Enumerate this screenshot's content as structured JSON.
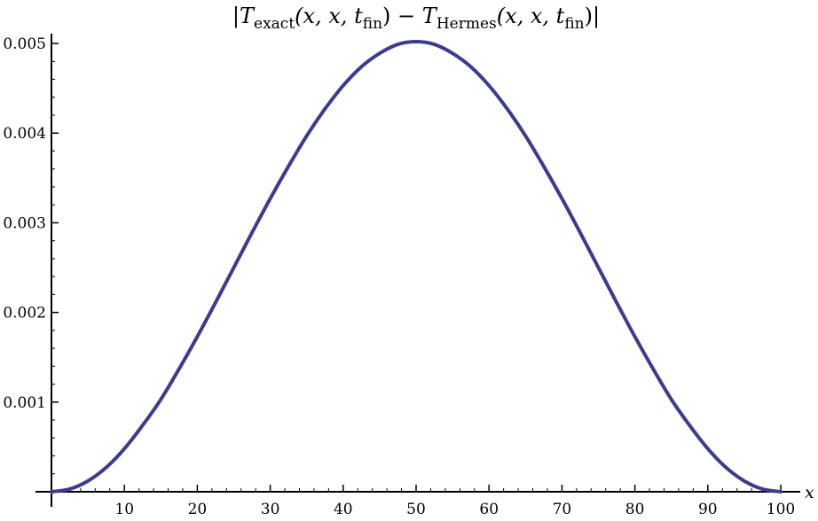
{
  "chart_data": {
    "type": "line",
    "title": {
      "bar_open": "|",
      "t1_main": "T",
      "t1_sub": "exact",
      "t1_args_a": "(x, x, t",
      "t1_args_sub": "fin",
      "t1_args_b": ")",
      "minus": " − ",
      "t2_main": "T",
      "t2_sub": "Hermes",
      "t2_args_a": "(x, x, t",
      "t2_args_sub": "fin",
      "t2_args_b": ")",
      "bar_close": "|"
    },
    "xlabel": "x",
    "ylabel": "",
    "xlim": [
      0,
      100
    ],
    "ylim": [
      0,
      0.00505
    ],
    "xticks": [
      10,
      20,
      30,
      40,
      50,
      60,
      70,
      80,
      90,
      100
    ],
    "xtick_labels": [
      "10",
      "20",
      "30",
      "40",
      "50",
      "60",
      "70",
      "80",
      "90",
      "100"
    ],
    "yticks": [
      0.001,
      0.002,
      0.003,
      0.004,
      0.005
    ],
    "ytick_labels": [
      "0.001",
      "0.002",
      "0.003",
      "0.004",
      "0.005"
    ],
    "grid": false,
    "series": [
      {
        "color": "#3b3b8f",
        "x": [
          0,
          2.5,
          5,
          7.5,
          10,
          12.5,
          15,
          17.5,
          20,
          22.5,
          25,
          27.5,
          30,
          32.5,
          35,
          37.5,
          40,
          42.5,
          45,
          47.5,
          50,
          52.5,
          55,
          57.5,
          60,
          62.5,
          65,
          67.5,
          70,
          72.5,
          75,
          77.5,
          80,
          82.5,
          85,
          87.5,
          90,
          92.5,
          95,
          97.5,
          100
        ],
        "y": [
          0,
          3e-05,
          0.00012,
          0.00027,
          0.00048,
          0.00074,
          0.00103,
          0.00137,
          0.00173,
          0.00211,
          0.0025,
          0.00289,
          0.00327,
          0.00363,
          0.00397,
          0.00427,
          0.00453,
          0.00474,
          0.00489,
          0.00499,
          0.00502,
          0.00499,
          0.00489,
          0.00474,
          0.00453,
          0.00427,
          0.00397,
          0.00363,
          0.00327,
          0.00289,
          0.0025,
          0.00211,
          0.00173,
          0.00137,
          0.00103,
          0.00074,
          0.00048,
          0.00027,
          0.00012,
          3e-05,
          0
        ]
      }
    ]
  }
}
